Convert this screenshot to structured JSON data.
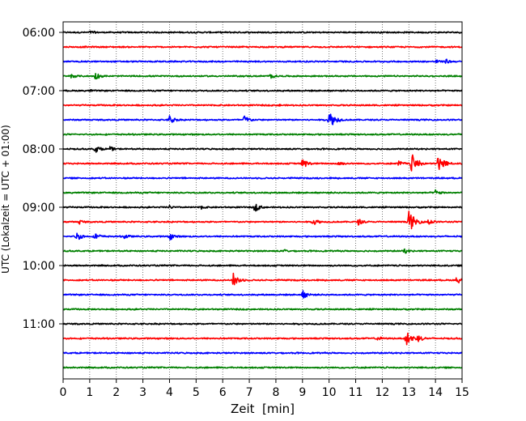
{
  "chart_data": {
    "type": "line",
    "title": "",
    "xlabel": "Zeit  [min]",
    "ylabel": "UTC (Lokalzeit = UTC + 01:00)",
    "xlim": [
      0,
      15
    ],
    "x_ticks": [
      0,
      1,
      2,
      3,
      4,
      5,
      6,
      7,
      8,
      9,
      10,
      11,
      12,
      13,
      14,
      15
    ],
    "x_tick_labels": [
      "0",
      "1",
      "2",
      "3",
      "4",
      "5",
      "6",
      "7",
      "8",
      "9",
      "10",
      "11",
      "12",
      "13",
      "14",
      "15"
    ],
    "y_tick_labels": [
      "06:00",
      "07:00",
      "08:00",
      "09:00",
      "10:00",
      "11:00"
    ],
    "grid": "vertical dotted",
    "trace_interval_min": 15,
    "traces": [
      {
        "start": "06:00",
        "color": "#000000",
        "events": [
          {
            "t": 1.0,
            "amp": 0.25
          },
          {
            "t": 1.1,
            "amp": 0.25
          }
        ]
      },
      {
        "start": "06:15",
        "color": "#ff0000",
        "events": []
      },
      {
        "start": "06:30",
        "color": "#0000ff",
        "events": [
          {
            "t": 14.0,
            "amp": 0.35
          },
          {
            "t": 14.4,
            "amp": 0.4
          }
        ]
      },
      {
        "start": "06:45",
        "color": "#008000",
        "events": [
          {
            "t": 0.3,
            "amp": 0.4
          },
          {
            "t": 1.2,
            "amp": 0.6
          },
          {
            "t": 7.8,
            "amp": 0.4
          }
        ]
      },
      {
        "start": "07:00",
        "color": "#000000",
        "events": [
          {
            "t": 1.0,
            "amp": 0.2
          }
        ]
      },
      {
        "start": "07:15",
        "color": "#ff0000",
        "events": [
          {
            "t": 8.1,
            "amp": 0.2
          }
        ]
      },
      {
        "start": "07:30",
        "color": "#0000ff",
        "events": [
          {
            "t": 4.0,
            "amp": 0.7
          },
          {
            "t": 6.8,
            "amp": 0.7
          },
          {
            "t": 10.0,
            "amp": 1.4
          },
          {
            "t": 10.3,
            "amp": 0.4
          }
        ]
      },
      {
        "start": "07:45",
        "color": "#008000",
        "events": []
      },
      {
        "start": "08:00",
        "color": "#000000",
        "events": [
          {
            "t": 1.2,
            "amp": 0.6
          },
          {
            "t": 1.7,
            "amp": 0.5
          }
        ]
      },
      {
        "start": "08:15",
        "color": "#ff0000",
        "events": [
          {
            "t": 9.0,
            "amp": 0.8
          },
          {
            "t": 10.3,
            "amp": 0.5
          },
          {
            "t": 12.6,
            "amp": 0.5
          },
          {
            "t": 13.1,
            "amp": 1.6
          },
          {
            "t": 14.1,
            "amp": 1.5
          }
        ]
      },
      {
        "start": "08:30",
        "color": "#0000ff",
        "events": []
      },
      {
        "start": "08:45",
        "color": "#008000",
        "events": [
          {
            "t": 14.0,
            "amp": 0.5
          }
        ]
      },
      {
        "start": "09:00",
        "color": "#000000",
        "events": [
          {
            "t": 4.0,
            "amp": 0.3
          },
          {
            "t": 5.2,
            "amp": 0.3
          },
          {
            "t": 7.2,
            "amp": 0.7
          }
        ]
      },
      {
        "start": "09:15",
        "color": "#ff0000",
        "events": [
          {
            "t": 0.6,
            "amp": 0.4
          },
          {
            "t": 9.4,
            "amp": 0.6
          },
          {
            "t": 11.1,
            "amp": 0.5
          },
          {
            "t": 13.0,
            "amp": 1.7
          },
          {
            "t": 13.7,
            "amp": 0.6
          }
        ]
      },
      {
        "start": "09:30",
        "color": "#0000ff",
        "events": [
          {
            "t": 0.5,
            "amp": 0.7
          },
          {
            "t": 1.2,
            "amp": 0.6
          },
          {
            "t": 2.3,
            "amp": 0.4
          },
          {
            "t": 4.0,
            "amp": 0.6
          }
        ]
      },
      {
        "start": "09:45",
        "color": "#008000",
        "events": [
          {
            "t": 8.3,
            "amp": 0.3
          },
          {
            "t": 12.8,
            "amp": 0.5
          }
        ]
      },
      {
        "start": "10:00",
        "color": "#000000",
        "events": []
      },
      {
        "start": "10:15",
        "color": "#ff0000",
        "events": [
          {
            "t": 6.4,
            "amp": 1.1
          },
          {
            "t": 14.8,
            "amp": 0.6
          }
        ]
      },
      {
        "start": "10:30",
        "color": "#0000ff",
        "events": [
          {
            "t": 9.0,
            "amp": 0.7
          }
        ]
      },
      {
        "start": "10:45",
        "color": "#008000",
        "events": []
      },
      {
        "start": "11:00",
        "color": "#000000",
        "events": []
      },
      {
        "start": "11:15",
        "color": "#ff0000",
        "events": [
          {
            "t": 11.8,
            "amp": 0.4
          },
          {
            "t": 12.9,
            "amp": 1.2
          },
          {
            "t": 13.3,
            "amp": 0.7
          }
        ]
      },
      {
        "start": "11:30",
        "color": "#0000ff",
        "events": [
          {
            "t": 2.5,
            "amp": 0.2
          }
        ]
      },
      {
        "start": "11:45",
        "color": "#008000",
        "events": []
      }
    ]
  }
}
